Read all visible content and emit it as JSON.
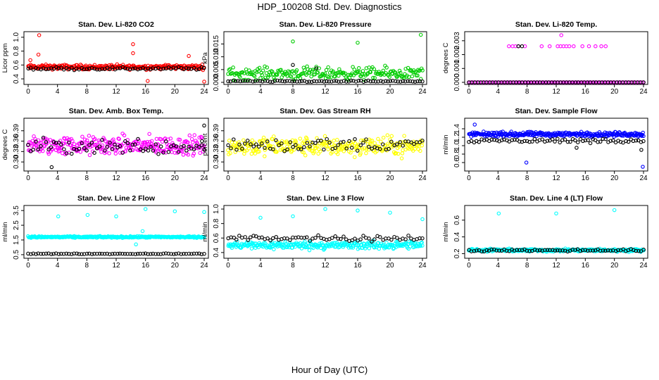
{
  "figure": {
    "title": "HDP_100208  Std. Dev. Diagnostics",
    "xlabel": "Hour of Day (UTC)"
  },
  "chart_data": [
    {
      "type": "scatter",
      "title": "Stan. Dev. Li-820 CO2",
      "xlabel": "",
      "ylabel": "Licor ppm",
      "xlim": [
        0,
        24
      ],
      "ylim": [
        0.35,
        1.05
      ],
      "xticks": [
        "0",
        "4",
        "8",
        "12",
        "16",
        "20",
        "24"
      ],
      "yticks": [
        "0.4",
        "0.6",
        "0.8",
        "1.0"
      ],
      "grid": false,
      "series": [
        {
          "color": "#ff0000",
          "base": 0.57,
          "spread": 0.05,
          "n": 290,
          "outliers": [
            [
              1.5,
              1.03
            ],
            [
              1.4,
              0.75
            ],
            [
              14.3,
              0.9
            ],
            [
              14.3,
              0.77
            ],
            [
              21.9,
              0.73
            ],
            [
              0.3,
              0.67
            ],
            [
              24.0,
              0.36
            ],
            [
              16.3,
              0.37
            ]
          ]
        },
        {
          "color": "#000000",
          "base": 0.55,
          "spread": 0.03,
          "n": 70,
          "outliers": []
        }
      ]
    },
    {
      "type": "scatter",
      "title": "Stan. Dev. Li-820 Pressure",
      "xlabel": "",
      "ylabel": "kPa",
      "xlim": [
        0,
        24
      ],
      "ylim": [
        0,
        0.019
      ],
      "xticks": [
        "0",
        "4",
        "8",
        "12",
        "16",
        "20",
        "24"
      ],
      "yticks": [
        "0.000",
        "0.005",
        "0.010",
        "0.015"
      ],
      "grid": false,
      "series": [
        {
          "color": "#00cc00",
          "base": 0.0035,
          "spread": 0.0035,
          "n": 230,
          "outliers": [
            [
              23.8,
              0.0186
            ],
            [
              8.0,
              0.016
            ],
            [
              16.0,
              0.0155
            ]
          ]
        },
        {
          "color": "#000000",
          "base": 0.0004,
          "spread": 0.0004,
          "n": 80,
          "outliers": [
            [
              8.0,
              0.0068
            ],
            [
              10.9,
              0.0055
            ]
          ]
        }
      ]
    },
    {
      "type": "scatter",
      "title": "Stan. Dev. Li-820 Temp.",
      "xlabel": "",
      "ylabel": "degrees C",
      "xlim": [
        0,
        24
      ],
      "ylim": [
        0,
        0.0035
      ],
      "xticks": [
        "0",
        "4",
        "8",
        "12",
        "16",
        "20",
        "24"
      ],
      "yticks": [
        "0.000",
        "0.001",
        "0.002",
        "0.003"
      ],
      "grid": false,
      "series": [
        {
          "color": "#ff00ff",
          "values_band": [
            0,
            0
          ],
          "n": 120,
          "outliers": [
            [
              5.5,
              0.0026
            ],
            [
              6.0,
              0.0026
            ],
            [
              6.4,
              0.0026
            ],
            [
              6.8,
              0.0026
            ],
            [
              7.7,
              0.0026
            ],
            [
              10.0,
              0.0026
            ],
            [
              11.1,
              0.0026
            ],
            [
              12.2,
              0.0026
            ],
            [
              12.6,
              0.0026
            ],
            [
              13.0,
              0.0026
            ],
            [
              13.4,
              0.0026
            ],
            [
              13.8,
              0.0026
            ],
            [
              14.4,
              0.0026
            ],
            [
              15.6,
              0.0026
            ],
            [
              16.5,
              0.0026
            ],
            [
              17.4,
              0.0026
            ],
            [
              18.2,
              0.0026
            ],
            [
              18.8,
              0.0026
            ],
            [
              12.7,
              0.0034
            ]
          ]
        },
        {
          "color": "#000000",
          "values_band": [
            0,
            0
          ],
          "n": 60,
          "outliers": [
            [
              6.8,
              0.0026
            ],
            [
              7.3,
              0.0026
            ]
          ]
        }
      ]
    },
    {
      "type": "scatter",
      "title": "Stan. Dev. Amb. Box Temp.",
      "xlabel": "",
      "ylabel": "degrees C",
      "xlim": [
        0,
        24
      ],
      "ylim": [
        0.28,
        0.42
      ],
      "xticks": [
        "0",
        "4",
        "8",
        "12",
        "16",
        "20",
        "24"
      ],
      "yticks": [
        "0.30",
        "0.33",
        "0.36",
        "0.39"
      ],
      "grid": false,
      "series": [
        {
          "color": "#ff00ff",
          "base": 0.347,
          "spread": 0.04,
          "n": 290,
          "outliers": []
        },
        {
          "color": "#000000",
          "base": 0.345,
          "spread": 0.035,
          "n": 70,
          "outliers": [
            [
              24.0,
              0.405
            ],
            [
              23.7,
              0.36
            ],
            [
              3.2,
              0.285
            ]
          ]
        }
      ]
    },
    {
      "type": "scatter",
      "title": "Stan. Dev. Gas Stream RH",
      "xlabel": "",
      "ylabel": "percent",
      "xlim": [
        0,
        24
      ],
      "ylim": [
        0.28,
        0.42
      ],
      "xticks": [
        "0",
        "4",
        "8",
        "12",
        "16",
        "20",
        "24"
      ],
      "yticks": [
        "0.30",
        "0.33",
        "0.36",
        "0.39"
      ],
      "grid": false,
      "series": [
        {
          "color": "#ffff00",
          "base": 0.345,
          "spread": 0.04,
          "n": 290,
          "outliers": []
        },
        {
          "color": "#000000",
          "base": 0.35,
          "spread": 0.03,
          "n": 70,
          "outliers": []
        }
      ]
    },
    {
      "type": "scatter",
      "title": "Stan. Dev. Sample Flow",
      "xlabel": "",
      "ylabel": "ml/min",
      "xlim": [
        0,
        24
      ],
      "ylim": [
        0.45,
        1.6
      ],
      "xticks": [
        "0",
        "4",
        "8",
        "12",
        "16",
        "20",
        "24"
      ],
      "yticks": [
        "0.6",
        "0.8",
        "1.0",
        "1.2",
        "1.4"
      ],
      "grid": false,
      "series": [
        {
          "color": "#0000ff",
          "base": 1.27,
          "spread": 0.08,
          "n": 290,
          "outliers": [
            [
              7.9,
              0.6
            ],
            [
              23.9,
              0.5
            ],
            [
              0.8,
              1.5
            ]
          ]
        },
        {
          "color": "#000000",
          "base": 1.12,
          "spread": 0.08,
          "n": 70,
          "outliers": [
            [
              23.7,
              0.9
            ],
            [
              14.8,
              0.95
            ]
          ]
        }
      ]
    },
    {
      "type": "scatter",
      "title": "Stan. Dev. Line 2 Flow",
      "xlabel": "",
      "ylabel": "ml/min",
      "xlim": [
        0,
        24
      ],
      "ylim": [
        0.4,
        3.7
      ],
      "xticks": [
        "0",
        "4",
        "8",
        "12",
        "16",
        "20",
        "24"
      ],
      "yticks": [
        "0.5",
        "1.5",
        "2.5",
        "3.5"
      ],
      "grid": false,
      "series": [
        {
          "color": "#00ffff",
          "base": 1.7,
          "spread": 0.08,
          "n": 290,
          "outliers": [
            [
              4.1,
              3.1
            ],
            [
              8.1,
              3.2
            ],
            [
              12.0,
              3.1
            ],
            [
              16.0,
              3.6
            ],
            [
              20.0,
              3.45
            ],
            [
              24.0,
              3.4
            ],
            [
              14.7,
              1.2
            ],
            [
              15.6,
              2.1
            ]
          ]
        },
        {
          "color": "#000000",
          "base": 0.56,
          "spread": 0.04,
          "n": 70,
          "outliers": []
        }
      ]
    },
    {
      "type": "scatter",
      "title": "Stan. Dev. Line 3 Flow",
      "xlabel": "",
      "ylabel": "ml/min",
      "xlim": [
        0,
        24
      ],
      "ylim": [
        0.35,
        1.02
      ],
      "xticks": [
        "0",
        "4",
        "8",
        "12",
        "16",
        "20",
        "24"
      ],
      "yticks": [
        "0.4",
        "0.6",
        "0.8",
        "1.0"
      ],
      "grid": false,
      "series": [
        {
          "color": "#00ffff",
          "base": 0.5,
          "spread": 0.08,
          "n": 300,
          "outliers": [
            [
              4.0,
              0.88
            ],
            [
              8.0,
              0.9
            ],
            [
              12.0,
              1.0
            ],
            [
              16.0,
              0.98
            ],
            [
              20.0,
              0.95
            ],
            [
              24.0,
              0.86
            ]
          ]
        },
        {
          "color": "#000000",
          "base": 0.6,
          "spread": 0.06,
          "n": 70,
          "outliers": []
        }
      ]
    },
    {
      "type": "scatter",
      "title": "Stan. Dev. Line 4 (LT) Flow",
      "xlabel": "",
      "ylabel": "ml/min",
      "xlim": [
        0,
        24
      ],
      "ylim": [
        0.17,
        0.75
      ],
      "xticks": [
        "0",
        "4",
        "8",
        "12",
        "16",
        "20",
        "24"
      ],
      "yticks": [
        "0.2",
        "0.4",
        "0.6"
      ],
      "grid": false,
      "series": [
        {
          "color": "#00ffff",
          "base": 0.24,
          "spread": 0.025,
          "n": 300,
          "outliers": [
            [
              4.1,
              0.68
            ],
            [
              12.0,
              0.68
            ],
            [
              20.0,
              0.72
            ]
          ]
        },
        {
          "color": "#000000",
          "base": 0.24,
          "spread": 0.02,
          "n": 70,
          "outliers": []
        }
      ]
    }
  ]
}
